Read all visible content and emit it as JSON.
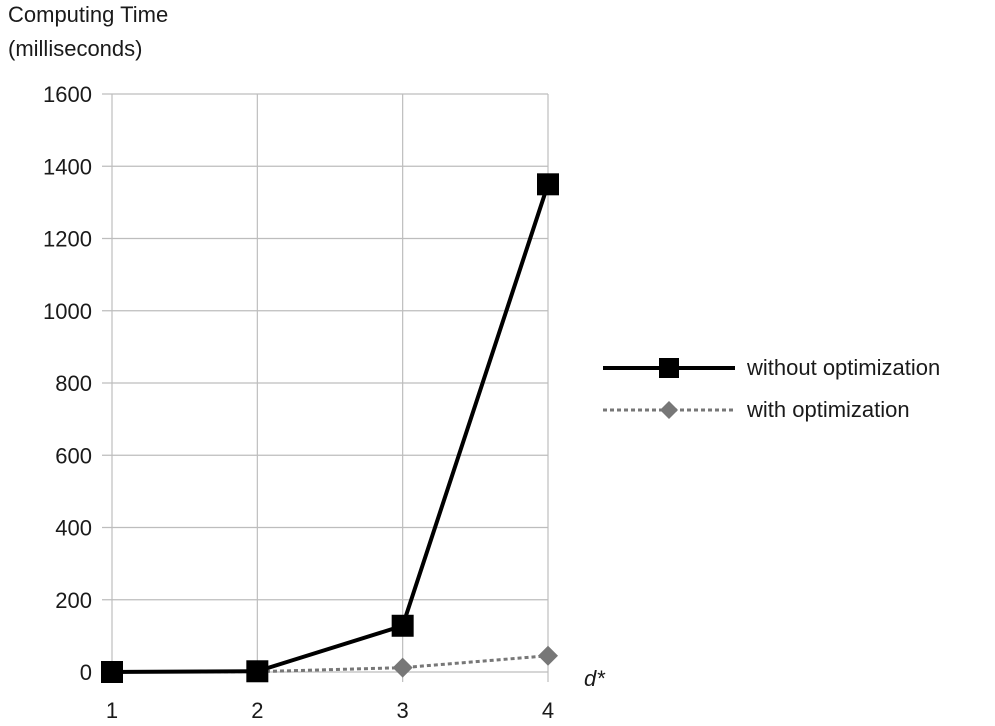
{
  "chart_data": {
    "type": "line",
    "ylabel_lines": [
      "Computing Time",
      "(milliseconds)"
    ],
    "xlabel": "d*",
    "categories": [
      "1",
      "2",
      "3",
      "4"
    ],
    "ylim": [
      0,
      1600
    ],
    "y_ticks": [
      "0",
      "200",
      "400",
      "600",
      "800",
      "1000",
      "1200",
      "1400",
      "1600"
    ],
    "grid": true,
    "legend_position": "right",
    "series": [
      {
        "name": "without optimization",
        "values": [
          0,
          2,
          128,
          1350
        ],
        "color": "#000000",
        "marker": "square",
        "line_style": "solid"
      },
      {
        "name": "with optimization",
        "values": [
          0,
          1,
          12,
          45
        ],
        "color": "#777777",
        "marker": "diamond",
        "line_style": "dashed"
      }
    ]
  }
}
